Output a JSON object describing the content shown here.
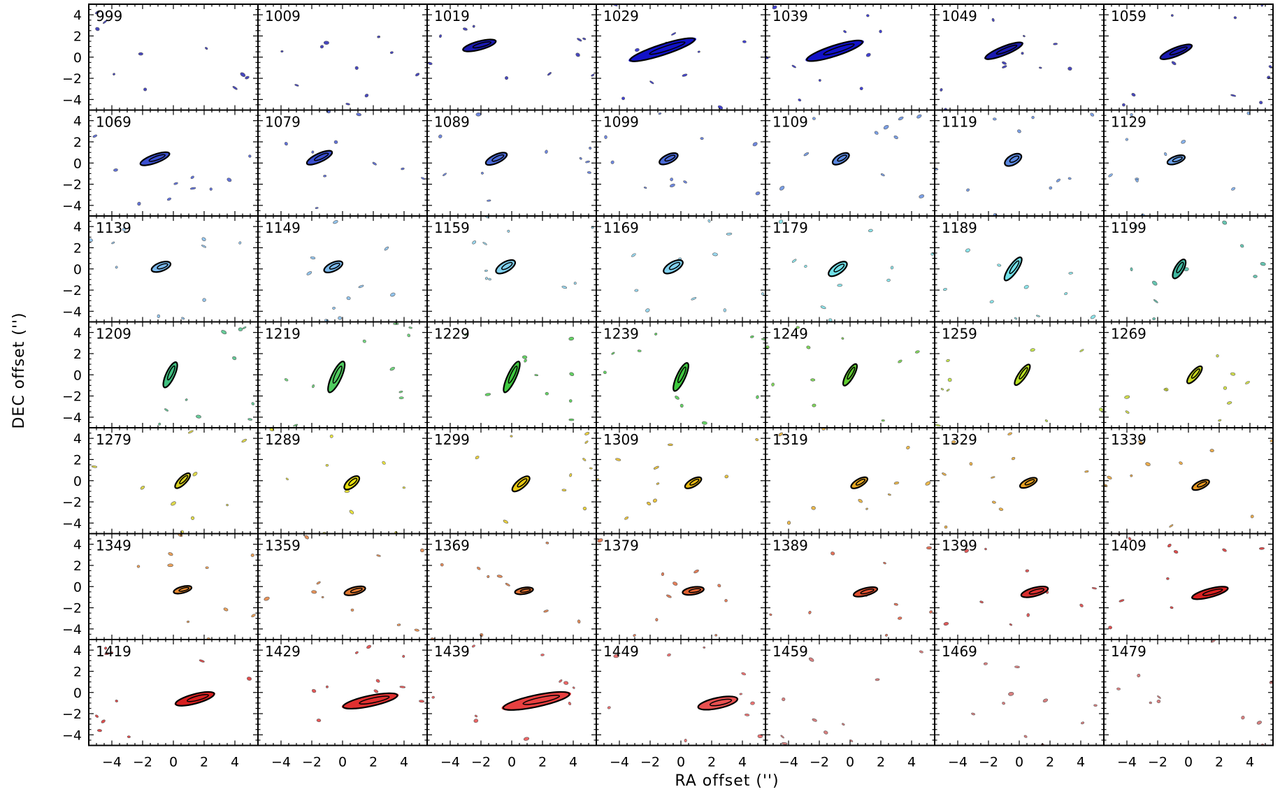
{
  "chart_data": {
    "type": "contour-grid",
    "xlabel": "RA offset ('')",
    "ylabel": "DEC offset ('')",
    "xlim": [
      -5.5,
      5.5
    ],
    "ylim": [
      -5,
      5
    ],
    "xticks": [
      -4,
      -2,
      0,
      2,
      4
    ],
    "yticks": [
      -4,
      -2,
      0,
      2,
      4
    ],
    "xtick_labels": [
      "−4",
      "−2",
      "0",
      "2",
      "4"
    ],
    "ytick_labels": [
      "−4",
      "−2",
      "0",
      "2",
      "4"
    ],
    "rows": 7,
    "cols": 7,
    "panels": [
      {
        "label": "999",
        "color": "#1a1ab0",
        "blobs": []
      },
      {
        "label": "1009",
        "color": "#1a1ab0",
        "blobs": []
      },
      {
        "label": "1019",
        "color": "#1a1ab0",
        "blobs": [
          {
            "x": -2.1,
            "y": 1.1,
            "w": 2.2,
            "h": 0.8,
            "rot": -15
          }
        ]
      },
      {
        "label": "1029",
        "color": "#1212c8",
        "blobs": [
          {
            "x": -1.2,
            "y": 0.7,
            "w": 4.4,
            "h": 1.0,
            "rot": -18
          }
        ]
      },
      {
        "label": "1039",
        "color": "#1212c8",
        "blobs": [
          {
            "x": -1.0,
            "y": 0.6,
            "w": 3.8,
            "h": 1.0,
            "rot": -18
          }
        ]
      },
      {
        "label": "1049",
        "color": "#1a1ab0",
        "blobs": [
          {
            "x": -1.0,
            "y": 0.6,
            "w": 2.6,
            "h": 0.8,
            "rot": -22
          }
        ]
      },
      {
        "label": "1059",
        "color": "#1a1ab0",
        "blobs": [
          {
            "x": -0.8,
            "y": 0.5,
            "w": 2.2,
            "h": 0.8,
            "rot": -22
          }
        ]
      },
      {
        "label": "1069",
        "color": "#3a4fd0",
        "blobs": [
          {
            "x": -1.2,
            "y": 0.4,
            "w": 2.0,
            "h": 0.8,
            "rot": -20
          }
        ]
      },
      {
        "label": "1079",
        "color": "#3a4fd0",
        "blobs": [
          {
            "x": -1.5,
            "y": 0.5,
            "w": 1.8,
            "h": 0.8,
            "rot": -25
          }
        ]
      },
      {
        "label": "1089",
        "color": "#4a6ad8",
        "blobs": [
          {
            "x": -1.0,
            "y": 0.4,
            "w": 1.5,
            "h": 0.8,
            "rot": -25
          }
        ]
      },
      {
        "label": "1099",
        "color": "#4a6ad8",
        "blobs": [
          {
            "x": -0.8,
            "y": 0.4,
            "w": 1.3,
            "h": 0.8,
            "rot": -25
          }
        ]
      },
      {
        "label": "1109",
        "color": "#5a88e0",
        "blobs": [
          {
            "x": -0.6,
            "y": 0.4,
            "w": 1.2,
            "h": 0.8,
            "rot": -30
          }
        ]
      },
      {
        "label": "1119",
        "color": "#5a88e0",
        "blobs": [
          {
            "x": -0.4,
            "y": 0.3,
            "w": 1.2,
            "h": 0.9,
            "rot": -30
          }
        ]
      },
      {
        "label": "1129",
        "color": "#6aa0e8",
        "blobs": [
          {
            "x": -0.8,
            "y": 0.3,
            "w": 1.2,
            "h": 0.7,
            "rot": -20
          }
        ]
      },
      {
        "label": "1139",
        "color": "#7ab8ec",
        "blobs": [
          {
            "x": -0.8,
            "y": 0.2,
            "w": 1.3,
            "h": 0.8,
            "rot": -20
          }
        ]
      },
      {
        "label": "1149",
        "color": "#7ab8ec",
        "blobs": [
          {
            "x": -0.6,
            "y": 0.2,
            "w": 1.3,
            "h": 0.8,
            "rot": -25
          }
        ]
      },
      {
        "label": "1159",
        "color": "#80d0ee",
        "blobs": [
          {
            "x": -0.4,
            "y": 0.2,
            "w": 1.4,
            "h": 0.9,
            "rot": -30
          }
        ]
      },
      {
        "label": "1169",
        "color": "#80d0ee",
        "blobs": [
          {
            "x": -0.5,
            "y": 0.2,
            "w": 1.4,
            "h": 0.9,
            "rot": -30
          }
        ]
      },
      {
        "label": "1179",
        "color": "#70e0e8",
        "blobs": [
          {
            "x": -0.8,
            "y": 0.0,
            "w": 1.4,
            "h": 0.9,
            "rot": -35
          }
        ]
      },
      {
        "label": "1189",
        "color": "#70e0e8",
        "blobs": [
          {
            "x": -0.4,
            "y": 0.0,
            "w": 1.8,
            "h": 0.8,
            "rot": -55
          }
        ]
      },
      {
        "label": "1199",
        "color": "#40b8a0",
        "blobs": [
          {
            "x": -0.6,
            "y": 0.0,
            "w": 1.4,
            "h": 0.8,
            "rot": -60
          }
        ]
      },
      {
        "label": "1209",
        "color": "#40c080",
        "blobs": [
          {
            "x": -0.2,
            "y": 0.0,
            "w": 1.8,
            "h": 0.8,
            "rot": -65
          }
        ]
      },
      {
        "label": "1219",
        "color": "#50cc60",
        "blobs": [
          {
            "x": -0.4,
            "y": -0.2,
            "w": 2.2,
            "h": 0.9,
            "rot": -65
          }
        ]
      },
      {
        "label": "1229",
        "color": "#3ec83e",
        "blobs": [
          {
            "x": 0.0,
            "y": -0.2,
            "w": 2.2,
            "h": 0.8,
            "rot": -65
          }
        ]
      },
      {
        "label": "1239",
        "color": "#3ec83e",
        "blobs": [
          {
            "x": 0.0,
            "y": -0.2,
            "w": 2.0,
            "h": 0.8,
            "rot": -65
          }
        ]
      },
      {
        "label": "1249",
        "color": "#60cc30",
        "blobs": [
          {
            "x": 0.0,
            "y": 0.0,
            "w": 1.6,
            "h": 0.7,
            "rot": -60
          }
        ]
      },
      {
        "label": "1259",
        "color": "#b8e020",
        "blobs": [
          {
            "x": 0.2,
            "y": 0.0,
            "w": 1.6,
            "h": 0.7,
            "rot": -55
          }
        ]
      },
      {
        "label": "1269",
        "color": "#c8d820",
        "blobs": [
          {
            "x": 0.4,
            "y": 0.0,
            "w": 1.4,
            "h": 0.7,
            "rot": -50
          }
        ]
      },
      {
        "label": "1279",
        "color": "#d8d020",
        "blobs": [
          {
            "x": 0.6,
            "y": 0.0,
            "w": 1.3,
            "h": 0.7,
            "rot": -45
          }
        ]
      },
      {
        "label": "1289",
        "color": "#e8e010",
        "blobs": [
          {
            "x": 0.6,
            "y": -0.2,
            "w": 1.2,
            "h": 0.8,
            "rot": -40
          }
        ]
      },
      {
        "label": "1299",
        "color": "#e8c810",
        "blobs": [
          {
            "x": 0.6,
            "y": -0.3,
            "w": 1.4,
            "h": 0.8,
            "rot": -40
          }
        ]
      },
      {
        "label": "1309",
        "color": "#e8b810",
        "blobs": [
          {
            "x": 0.8,
            "y": -0.2,
            "w": 1.2,
            "h": 0.7,
            "rot": -30
          }
        ]
      },
      {
        "label": "1319",
        "color": "#e8a820",
        "blobs": [
          {
            "x": 0.6,
            "y": -0.2,
            "w": 1.2,
            "h": 0.7,
            "rot": -30
          }
        ]
      },
      {
        "label": "1329",
        "color": "#e8a020",
        "blobs": [
          {
            "x": 0.6,
            "y": -0.2,
            "w": 1.2,
            "h": 0.7,
            "rot": -25
          }
        ]
      },
      {
        "label": "1339",
        "color": "#e89820",
        "blobs": [
          {
            "x": 0.8,
            "y": -0.4,
            "w": 1.2,
            "h": 0.7,
            "rot": -25
          }
        ]
      },
      {
        "label": "1349",
        "color": "#e88a30",
        "blobs": [
          {
            "x": 0.6,
            "y": -0.3,
            "w": 1.2,
            "h": 0.6,
            "rot": -15
          }
        ]
      },
      {
        "label": "1359",
        "color": "#e07830",
        "blobs": [
          {
            "x": 0.8,
            "y": -0.4,
            "w": 1.4,
            "h": 0.7,
            "rot": -15
          }
        ]
      },
      {
        "label": "1369",
        "color": "#e07030",
        "blobs": [
          {
            "x": 0.8,
            "y": -0.4,
            "w": 1.2,
            "h": 0.6,
            "rot": -10
          }
        ]
      },
      {
        "label": "1379",
        "color": "#e06030",
        "blobs": [
          {
            "x": 0.8,
            "y": -0.4,
            "w": 1.4,
            "h": 0.7,
            "rot": -10
          }
        ]
      },
      {
        "label": "1389",
        "color": "#e05030",
        "blobs": [
          {
            "x": 1.0,
            "y": -0.5,
            "w": 1.6,
            "h": 0.7,
            "rot": -15
          }
        ]
      },
      {
        "label": "1399",
        "color": "#d83030",
        "blobs": [
          {
            "x": 1.0,
            "y": -0.5,
            "w": 1.8,
            "h": 0.8,
            "rot": -15
          }
        ]
      },
      {
        "label": "1409",
        "color": "#d82020",
        "blobs": [
          {
            "x": 1.4,
            "y": -0.6,
            "w": 2.4,
            "h": 0.8,
            "rot": -15
          }
        ]
      },
      {
        "label": "1419",
        "color": "#d82020",
        "blobs": [
          {
            "x": 1.4,
            "y": -0.6,
            "w": 2.6,
            "h": 0.9,
            "rot": -15
          }
        ]
      },
      {
        "label": "1429",
        "color": "#e03030",
        "blobs": [
          {
            "x": 1.8,
            "y": -0.8,
            "w": 3.6,
            "h": 1.0,
            "rot": -12
          }
        ]
      },
      {
        "label": "1439",
        "color": "#e84040",
        "blobs": [
          {
            "x": 1.6,
            "y": -0.8,
            "w": 4.4,
            "h": 1.1,
            "rot": -12
          }
        ]
      },
      {
        "label": "1449",
        "color": "#e85050",
        "blobs": [
          {
            "x": 2.4,
            "y": -1.0,
            "w": 2.6,
            "h": 1.0,
            "rot": -12
          }
        ]
      },
      {
        "label": "1459",
        "color": "#d06060",
        "blobs": []
      },
      {
        "label": "1469",
        "color": "#d06060",
        "blobs": []
      },
      {
        "label": "1479",
        "color": "#d06060",
        "blobs": []
      }
    ]
  }
}
